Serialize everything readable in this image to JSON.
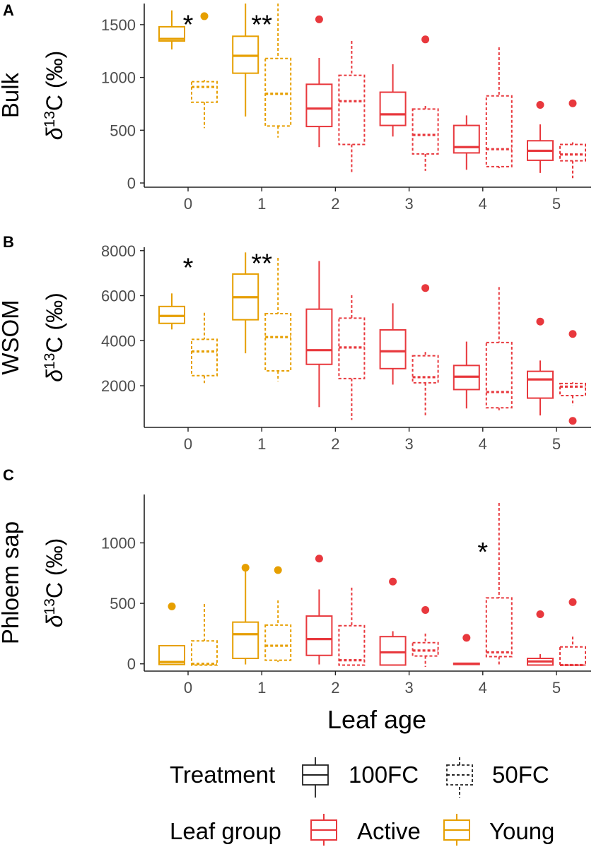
{
  "figure": {
    "xlabel": "Leaf age",
    "ylabel_unit_base": "δ",
    "ylabel_unit_sup": "13",
    "ylabel_unit_rest": "C (‰)"
  },
  "legend": {
    "treatment": {
      "title": "Treatment",
      "items": [
        {
          "label": "100FC",
          "linetype": "solid"
        },
        {
          "label": "50FC",
          "linetype": "dashed"
        }
      ]
    },
    "group": {
      "title": "Leaf group",
      "items": [
        {
          "label": "Active",
          "color": "#E8383D"
        },
        {
          "label": "Young",
          "color": "#E69F00"
        }
      ]
    }
  },
  "colors": {
    "active": "#E8383D",
    "young": "#E69F00",
    "axis": "#222222",
    "tick_text": "#4D4D4D"
  },
  "chart_data": [
    {
      "panel": "A",
      "type": "boxplot",
      "title": "Bulk",
      "ylabel": "Bulk",
      "xlabel": "",
      "categories": [
        "0",
        "1",
        "2",
        "3",
        "4",
        "5"
      ],
      "ylim": [
        -40,
        1700
      ],
      "yticks": [
        0,
        500,
        1000,
        1500
      ],
      "series": [
        {
          "name": "100FC",
          "boxes": [
            {
              "age": 0,
              "group": "Young",
              "min": 1265,
              "q1": 1345,
              "median": 1365,
              "q3": 1480,
              "max": 1635,
              "outliers": []
            },
            {
              "age": 1,
              "group": "Young",
              "min": 630,
              "q1": 1040,
              "median": 1205,
              "q3": 1390,
              "max": 1700,
              "outliers": []
            },
            {
              "age": 2,
              "group": "Active",
              "min": 340,
              "q1": 535,
              "median": 705,
              "q3": 935,
              "max": 1185,
              "outliers": [
                1550
              ]
            },
            {
              "age": 3,
              "group": "Active",
              "min": 440,
              "q1": 545,
              "median": 650,
              "q3": 860,
              "max": 1125,
              "outliers": []
            },
            {
              "age": 4,
              "group": "Active",
              "min": 125,
              "q1": 285,
              "median": 340,
              "q3": 545,
              "max": 640,
              "outliers": []
            },
            {
              "age": 5,
              "group": "Active",
              "min": 95,
              "q1": 215,
              "median": 305,
              "q3": 400,
              "max": 555,
              "outliers": [
                740
              ]
            }
          ]
        },
        {
          "name": "50FC",
          "boxes": [
            {
              "age": 0,
              "group": "Young",
              "min": 520,
              "q1": 765,
              "median": 910,
              "q3": 960,
              "max": 975,
              "outliers": [
                1580
              ]
            },
            {
              "age": 1,
              "group": "Young",
              "min": 430,
              "q1": 540,
              "median": 845,
              "q3": 1180,
              "max": 1700,
              "outliers": []
            },
            {
              "age": 2,
              "group": "Active",
              "min": 90,
              "q1": 365,
              "median": 775,
              "q3": 1020,
              "max": 1345,
              "outliers": []
            },
            {
              "age": 3,
              "group": "Active",
              "min": 115,
              "q1": 275,
              "median": 455,
              "q3": 700,
              "max": 730,
              "outliers": [
                1360
              ]
            },
            {
              "age": 4,
              "group": "Active",
              "min": 140,
              "q1": 155,
              "median": 320,
              "q3": 825,
              "max": 1285,
              "outliers": []
            },
            {
              "age": 5,
              "group": "Active",
              "min": 45,
              "q1": 210,
              "median": 270,
              "q3": 365,
              "max": 385,
              "outliers": [
                755
              ]
            }
          ]
        }
      ],
      "annotations": [
        {
          "text": "*",
          "age": 0,
          "y": 1555
        },
        {
          "text": "**",
          "age": 1,
          "y": 1555
        }
      ]
    },
    {
      "panel": "B",
      "type": "boxplot",
      "title": "WSOM",
      "ylabel": "WSOM",
      "xlabel": "",
      "categories": [
        "0",
        "1",
        "2",
        "3",
        "4",
        "5"
      ],
      "ylim": [
        150,
        8150
      ],
      "yticks": [
        2000,
        4000,
        6000,
        8000
      ],
      "series": [
        {
          "name": "100FC",
          "boxes": [
            {
              "age": 0,
              "group": "Young",
              "min": 4500,
              "q1": 4770,
              "median": 5100,
              "q3": 5520,
              "max": 6100,
              "outliers": []
            },
            {
              "age": 1,
              "group": "Young",
              "min": 3440,
              "q1": 4930,
              "median": 5930,
              "q3": 6960,
              "max": 7920,
              "outliers": []
            },
            {
              "age": 2,
              "group": "Active",
              "min": 1050,
              "q1": 2950,
              "median": 3580,
              "q3": 5400,
              "max": 7540,
              "outliers": []
            },
            {
              "age": 3,
              "group": "Active",
              "min": 2050,
              "q1": 2760,
              "median": 3530,
              "q3": 4480,
              "max": 5660,
              "outliers": []
            },
            {
              "age": 4,
              "group": "Active",
              "min": 990,
              "q1": 1830,
              "median": 2400,
              "q3": 2900,
              "max": 3960,
              "outliers": []
            },
            {
              "age": 5,
              "group": "Active",
              "min": 680,
              "q1": 1450,
              "median": 2280,
              "q3": 2640,
              "max": 3120,
              "outliers": [
                4850
              ]
            }
          ]
        },
        {
          "name": "50FC",
          "boxes": [
            {
              "age": 0,
              "group": "Young",
              "min": 2120,
              "q1": 2450,
              "median": 3520,
              "q3": 4060,
              "max": 5240,
              "outliers": []
            },
            {
              "age": 1,
              "group": "Young",
              "min": 2200,
              "q1": 2660,
              "median": 4160,
              "q3": 5200,
              "max": 7680,
              "outliers": []
            },
            {
              "age": 2,
              "group": "Active",
              "min": 480,
              "q1": 2320,
              "median": 3700,
              "q3": 5000,
              "max": 6020,
              "outliers": []
            },
            {
              "age": 3,
              "group": "Active",
              "min": 670,
              "q1": 2130,
              "median": 2380,
              "q3": 3330,
              "max": 3500,
              "outliers": [
                6340
              ]
            },
            {
              "age": 4,
              "group": "Active",
              "min": 910,
              "q1": 1020,
              "median": 1720,
              "q3": 3920,
              "max": 6380,
              "outliers": []
            },
            {
              "age": 5,
              "group": "Active",
              "min": 1120,
              "q1": 1560,
              "median": 1960,
              "q3": 2100,
              "max": 2150,
              "outliers": [
                4300,
                440
              ]
            }
          ]
        }
      ],
      "annotations": [
        {
          "text": "*",
          "age": 0,
          "y": 7500
        },
        {
          "text": "**",
          "age": 1,
          "y": 7700
        }
      ]
    },
    {
      "panel": "C",
      "type": "boxplot",
      "title": "Phloem sap",
      "ylabel": "Phloem sap",
      "xlabel": "Leaf age",
      "categories": [
        "0",
        "1",
        "2",
        "3",
        "4",
        "5"
      ],
      "ylim": [
        -60,
        1400
      ],
      "yticks": [
        0,
        500,
        1000
      ],
      "series": [
        {
          "name": "100FC",
          "boxes": [
            {
              "age": 0,
              "group": "Young",
              "min": -5,
              "q1": -5,
              "median": 15,
              "q3": 150,
              "max": 155,
              "outliers": [
                475
              ]
            },
            {
              "age": 1,
              "group": "Young",
              "min": -5,
              "q1": 45,
              "median": 245,
              "q3": 345,
              "max": 770,
              "outliers": [
                795
              ]
            },
            {
              "age": 2,
              "group": "Active",
              "min": -5,
              "q1": 70,
              "median": 205,
              "q3": 395,
              "max": 615,
              "outliers": [
                870
              ]
            },
            {
              "age": 3,
              "group": "Active",
              "min": -10,
              "q1": -10,
              "median": 95,
              "q3": 225,
              "max": 270,
              "outliers": [
                680
              ]
            },
            {
              "age": 4,
              "group": "Active",
              "min": -5,
              "q1": -5,
              "median": 0,
              "q3": 5,
              "max": 5,
              "outliers": [
                215
              ]
            },
            {
              "age": 5,
              "group": "Active",
              "min": -10,
              "q1": -10,
              "median": 20,
              "q3": 45,
              "max": 80,
              "outliers": [
                410
              ]
            }
          ]
        },
        {
          "name": "50FC",
          "boxes": [
            {
              "age": 0,
              "group": "Young",
              "min": -10,
              "q1": -10,
              "median": 0,
              "q3": 190,
              "max": 495,
              "outliers": []
            },
            {
              "age": 1,
              "group": "Young",
              "min": 15,
              "q1": 30,
              "median": 150,
              "q3": 320,
              "max": 525,
              "outliers": [
                775
              ]
            },
            {
              "age": 2,
              "group": "Active",
              "min": -10,
              "q1": -10,
              "median": 30,
              "q3": 315,
              "max": 630,
              "outliers": []
            },
            {
              "age": 3,
              "group": "Active",
              "min": -25,
              "q1": 65,
              "median": 110,
              "q3": 175,
              "max": 250,
              "outliers": [
                445
              ]
            },
            {
              "age": 4,
              "group": "Active",
              "min": -5,
              "q1": 60,
              "median": 95,
              "q3": 545,
              "max": 1330,
              "outliers": []
            },
            {
              "age": 5,
              "group": "Active",
              "min": -10,
              "q1": -10,
              "median": -10,
              "q3": 140,
              "max": 225,
              "outliers": [
                510
              ]
            }
          ]
        }
      ],
      "annotations": [
        {
          "text": "*",
          "age": 4,
          "y": 975
        }
      ]
    }
  ]
}
